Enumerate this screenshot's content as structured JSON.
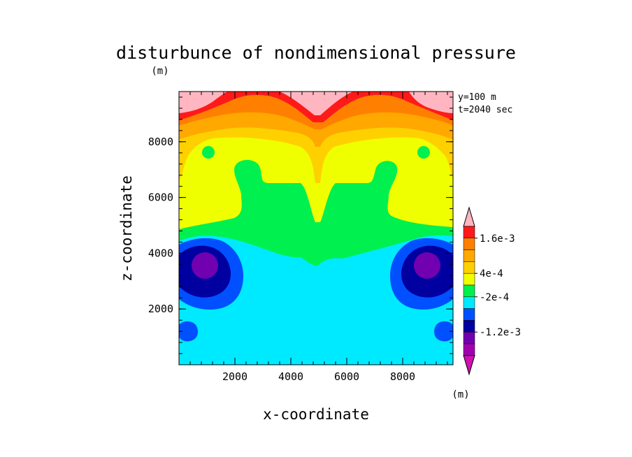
{
  "chart_data": {
    "type": "heatmap",
    "title": "disturbunce of nondimensional pressure",
    "title_unit": "(m)",
    "xlabel": "x-coordinate",
    "ylabel": "z-coordinate",
    "annotations": [
      "y=100 m",
      "t=2040 sec"
    ],
    "x_ticks": [
      "2000",
      "4000",
      "6000",
      "8000"
    ],
    "y_ticks": [
      "2000",
      "4000",
      "6000",
      "8000"
    ],
    "xlim": [
      0,
      9800
    ],
    "ylim": [
      0,
      9800
    ],
    "grid": false,
    "colorbar": {
      "unit": "(m)",
      "labels": [
        "1.6e-3",
        "4e-4",
        "-2e-4",
        "-1.2e-3"
      ],
      "colors": [
        "#ffb6c1",
        "#ff1a1a",
        "#ff8000",
        "#ffa800",
        "#ffd000",
        "#f0ff00",
        "#00f050",
        "#00eaff",
        "#0050ff",
        "#0000a0",
        "#7000b0",
        "#a000b0",
        "#d010b0"
      ]
    }
  }
}
